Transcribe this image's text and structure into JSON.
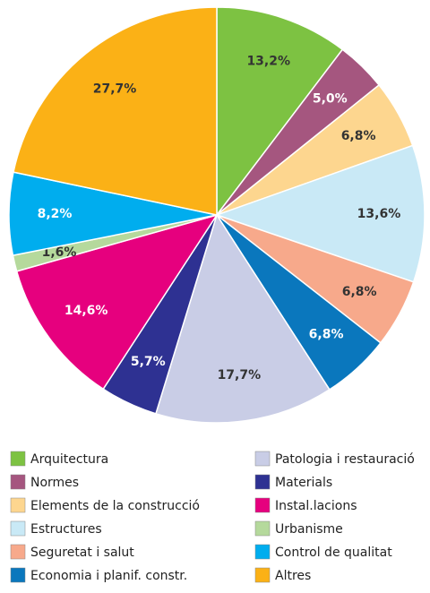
{
  "chart_data": {
    "type": "pie",
    "categories": [
      "Arquitectura",
      "Normes",
      "Elements de la construcció",
      "Estructures",
      "Seguretat i salut",
      "Economia i planif. constr.",
      "Patologia i restauració",
      "Materials",
      "Instal.lacions",
      "Urbanisme",
      "Control de qualitat",
      "Altres"
    ],
    "values": [
      13.2,
      5.0,
      6.8,
      13.6,
      6.8,
      6.8,
      17.7,
      5.7,
      14.6,
      1.6,
      8.2,
      27.7
    ],
    "value_labels": [
      "13,2%",
      "5,0%",
      "6,8%",
      "13,6%",
      "6,8%",
      "6,8%",
      "17,7%",
      "5,7%",
      "14,6%",
      "1,6%",
      "8,2%",
      "27,7%"
    ],
    "colors": [
      "#7dc242",
      "#a5567f",
      "#fdd68f",
      "#c9e9f6",
      "#f7a98b",
      "#0a77bd",
      "#c9cde6",
      "#2e3192",
      "#e6007e",
      "#b5d99c",
      "#00adee",
      "#fbb116"
    ]
  }
}
